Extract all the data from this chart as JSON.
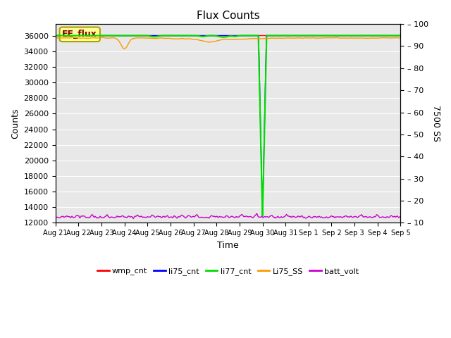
{
  "title": "Flux Counts",
  "ylabel_left": "Counts",
  "ylabel_right": "7500 SS",
  "xlabel": "Time",
  "ylim_left": [
    12000,
    37500
  ],
  "ylim_right": [
    10,
    100
  ],
  "yticks_left": [
    12000,
    14000,
    16000,
    18000,
    20000,
    22000,
    24000,
    26000,
    28000,
    30000,
    32000,
    34000,
    36000
  ],
  "yticks_right": [
    10,
    20,
    30,
    40,
    50,
    60,
    70,
    80,
    90,
    100
  ],
  "xtick_labels": [
    "Aug 21",
    "Aug 22",
    "Aug 23",
    "Aug 24",
    "Aug 25",
    "Aug 26",
    "Aug 27",
    "Aug 28",
    "Aug 29",
    "Aug 30",
    "Aug 31",
    "Sep 1",
    "Sep 2",
    "Sep 3",
    "Sep 4",
    "Sep 5"
  ],
  "n_xticks": 16,
  "bg_color": "#e8e8e8",
  "fig_bg_color": "#ffffff",
  "annotation_text": "EE_flux",
  "lines": {
    "wmp_cnt": {
      "color": "#ff0000",
      "lw": 1.0,
      "label": "wmp_cnt"
    },
    "li75_cnt": {
      "color": "#0000ff",
      "lw": 1.0,
      "label": "li75_cnt"
    },
    "li77_cnt": {
      "color": "#00dd00",
      "lw": 1.5,
      "label": "li77_cnt"
    },
    "Li75_SS": {
      "color": "#ff9900",
      "lw": 1.0,
      "label": "Li75_SS"
    },
    "batt_volt": {
      "color": "#cc00cc",
      "lw": 1.0,
      "label": "batt_volt"
    }
  },
  "right_tick_prefix": "– "
}
